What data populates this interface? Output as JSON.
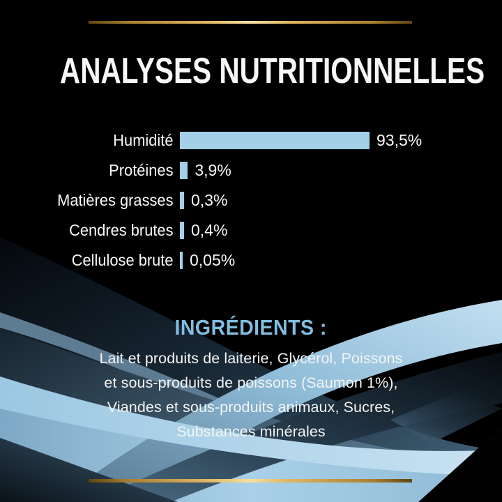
{
  "title": "ANALYSES NUTRITIONNELLES",
  "chart_data": {
    "type": "bar",
    "orientation": "horizontal",
    "title": "ANALYSES NUTRITIONNELLES",
    "categories": [
      "Humidité",
      "Protéines",
      "Matières grasses",
      "Cendres brutes",
      "Cellulose brute"
    ],
    "values": [
      93.5,
      3.9,
      0.3,
      0.4,
      0.05
    ],
    "value_labels": [
      "93,5%",
      "3,9%",
      "0,3%",
      "0,4%",
      "0,05%"
    ],
    "unit": "%",
    "xlim": [
      0,
      100
    ],
    "bar_color": "#a3cfe8",
    "grid": "off",
    "legend": "none"
  },
  "ingredients": {
    "heading": "INGRÉDIENTS :",
    "lines": [
      "Lait et produits de laiterie, Glycérol, Poissons",
      "et sous-produits de poissons (Saumon 1%),",
      "Viandes et sous-produits animaux, Sucres,",
      "Substances minérales"
    ]
  },
  "colors": {
    "background": "#000000",
    "bar_blue": "#a3cfe8",
    "heading_blue": "#82bde2",
    "text_white": "#f7f7f7",
    "gold": "#d9ab53"
  }
}
